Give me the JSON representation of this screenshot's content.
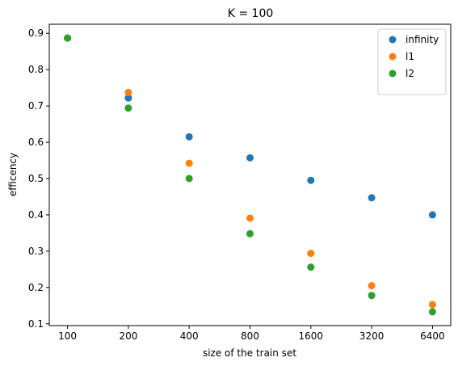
{
  "chart_data": {
    "type": "scatter",
    "title": "K = 100",
    "xlabel": "size of the train set",
    "ylabel": "efficency",
    "x_scale": "log2",
    "x": [
      100,
      200,
      400,
      800,
      1600,
      3200,
      6400
    ],
    "x_tick_labels": [
      "100",
      "200",
      "400",
      "800",
      "1600",
      "3200",
      "6400"
    ],
    "ylim": [
      0.095,
      0.925
    ],
    "y_ticks": [
      0.1,
      0.2,
      0.3,
      0.4,
      0.5,
      0.6,
      0.7,
      0.8,
      0.9
    ],
    "y_tick_labels": [
      "0.1",
      "0.2",
      "0.3",
      "0.4",
      "0.5",
      "0.6",
      "0.7",
      "0.8",
      "0.9"
    ],
    "grid": false,
    "legend_position": "top-right",
    "series": [
      {
        "name": "infinity",
        "color": "#1f77b4",
        "values": [
          0.887,
          0.722,
          0.615,
          0.557,
          0.495,
          0.447,
          0.4
        ]
      },
      {
        "name": "l1",
        "color": "#ff7f0e",
        "values": [
          0.887,
          0.737,
          0.542,
          0.391,
          0.294,
          0.205,
          0.153
        ]
      },
      {
        "name": "l2",
        "color": "#2ca02c",
        "values": [
          0.887,
          0.694,
          0.5,
          0.348,
          0.256,
          0.178,
          0.133
        ]
      }
    ]
  }
}
